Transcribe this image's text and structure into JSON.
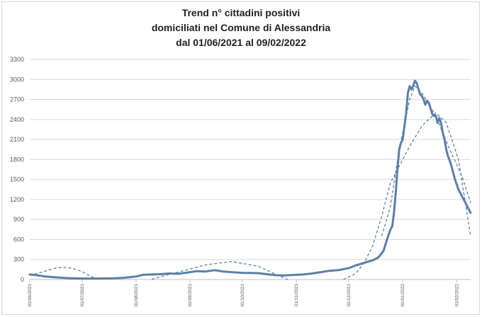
{
  "chart_data": {
    "type": "line",
    "title": [
      "Trend n° cittadini positivi",
      "domiciliati nel Comune di Alessandria",
      "dal 01/06/2021 al 09/02/2022"
    ],
    "xlabel": "",
    "ylabel": "",
    "x_ticks": [
      "01/06/2021",
      "01/07/2021",
      "01/08/2021",
      "01/09/2021",
      "01/10/2021",
      "01/11/2021",
      "01/12/2021",
      "01/01/2022",
      "01/02/2022"
    ],
    "y_ticks": [
      0,
      300,
      600,
      900,
      1200,
      1500,
      1800,
      2100,
      2400,
      2700,
      3000,
      3300
    ],
    "ylim": [
      0,
      3300
    ],
    "xlim": [
      "2021-06-01",
      "2022-02-09"
    ],
    "grid": true,
    "legend": "none",
    "colors": {
      "series": "#5b7fa8",
      "grid": "#d9d9d9",
      "axis": "#bfbfbf"
    },
    "series": [
      {
        "style": "solid",
        "points": [
          [
            "2021-06-01",
            75
          ],
          [
            "2021-06-05",
            65
          ],
          [
            "2021-06-10",
            45
          ],
          [
            "2021-06-15",
            35
          ],
          [
            "2021-06-20",
            25
          ],
          [
            "2021-06-25",
            18
          ],
          [
            "2021-07-01",
            15
          ],
          [
            "2021-07-10",
            15
          ],
          [
            "2021-07-20",
            18
          ],
          [
            "2021-07-25",
            25
          ],
          [
            "2021-08-01",
            45
          ],
          [
            "2021-08-05",
            70
          ],
          [
            "2021-08-10",
            75
          ],
          [
            "2021-08-15",
            80
          ],
          [
            "2021-08-20",
            90
          ],
          [
            "2021-08-25",
            85
          ],
          [
            "2021-09-01",
            110
          ],
          [
            "2021-09-05",
            125
          ],
          [
            "2021-09-10",
            120
          ],
          [
            "2021-09-15",
            140
          ],
          [
            "2021-09-20",
            120
          ],
          [
            "2021-09-25",
            110
          ],
          [
            "2021-10-01",
            100
          ],
          [
            "2021-10-10",
            95
          ],
          [
            "2021-10-15",
            80
          ],
          [
            "2021-10-20",
            65
          ],
          [
            "2021-10-25",
            60
          ],
          [
            "2021-11-01",
            70
          ],
          [
            "2021-11-05",
            75
          ],
          [
            "2021-11-10",
            90
          ],
          [
            "2021-11-15",
            110
          ],
          [
            "2021-11-20",
            130
          ],
          [
            "2021-11-25",
            140
          ],
          [
            "2021-12-01",
            170
          ],
          [
            "2021-12-05",
            210
          ],
          [
            "2021-12-10",
            250
          ],
          [
            "2021-12-15",
            290
          ],
          [
            "2021-12-18",
            330
          ],
          [
            "2021-12-21",
            430
          ],
          [
            "2021-12-23",
            600
          ],
          [
            "2021-12-25",
            750
          ],
          [
            "2021-12-26",
            800
          ],
          [
            "2021-12-27",
            1000
          ],
          [
            "2021-12-28",
            1300
          ],
          [
            "2021-12-29",
            1650
          ],
          [
            "2021-12-30",
            1950
          ],
          [
            "2021-12-31",
            2050
          ],
          [
            "2022-01-01",
            2100
          ],
          [
            "2022-01-02",
            2300
          ],
          [
            "2022-01-03",
            2500
          ],
          [
            "2022-01-04",
            2800
          ],
          [
            "2022-01-05",
            2900
          ],
          [
            "2022-01-06",
            2850
          ],
          [
            "2022-01-07",
            2900
          ],
          [
            "2022-01-08",
            2980
          ],
          [
            "2022-01-09",
            2950
          ],
          [
            "2022-01-10",
            2860
          ],
          [
            "2022-01-11",
            2780
          ],
          [
            "2022-01-12",
            2750
          ],
          [
            "2022-01-13",
            2700
          ],
          [
            "2022-01-14",
            2620
          ],
          [
            "2022-01-15",
            2680
          ],
          [
            "2022-01-16",
            2650
          ],
          [
            "2022-01-17",
            2560
          ],
          [
            "2022-01-18",
            2480
          ],
          [
            "2022-01-19",
            2450
          ],
          [
            "2022-01-20",
            2460
          ],
          [
            "2022-01-21",
            2350
          ],
          [
            "2022-01-22",
            2420
          ],
          [
            "2022-01-23",
            2350
          ],
          [
            "2022-01-24",
            2200
          ],
          [
            "2022-01-25",
            2100
          ],
          [
            "2022-01-26",
            1950
          ],
          [
            "2022-01-27",
            1850
          ],
          [
            "2022-01-28",
            1780
          ],
          [
            "2022-01-29",
            1700
          ],
          [
            "2022-01-30",
            1600
          ],
          [
            "2022-01-31",
            1500
          ],
          [
            "2022-02-02",
            1350
          ],
          [
            "2022-02-04",
            1250
          ],
          [
            "2022-02-06",
            1150
          ],
          [
            "2022-02-08",
            1050
          ],
          [
            "2022-02-09",
            1000
          ]
        ]
      },
      {
        "style": "dashed",
        "points": [
          [
            "2021-06-01",
            60
          ],
          [
            "2021-06-08",
            110
          ],
          [
            "2021-06-15",
            165
          ],
          [
            "2021-06-20",
            185
          ],
          [
            "2021-06-25",
            170
          ],
          [
            "2021-07-01",
            120
          ],
          [
            "2021-07-05",
            60
          ],
          [
            "2021-07-09",
            10
          ]
        ]
      },
      {
        "style": "dashed",
        "points": [
          [
            "2021-08-10",
            5
          ],
          [
            "2021-08-25",
            110
          ],
          [
            "2021-09-10",
            220
          ],
          [
            "2021-09-25",
            270
          ],
          [
            "2021-10-10",
            200
          ],
          [
            "2021-10-20",
            80
          ],
          [
            "2021-10-27",
            0
          ]
        ]
      },
      {
        "style": "dashed",
        "points": [
          [
            "2021-11-28",
            0
          ],
          [
            "2021-12-05",
            90
          ],
          [
            "2021-12-10",
            250
          ],
          [
            "2021-12-15",
            520
          ],
          [
            "2021-12-20",
            950
          ],
          [
            "2021-12-25",
            1450
          ],
          [
            "2021-12-30",
            1700
          ],
          [
            "2022-01-05",
            2000
          ],
          [
            "2022-01-12",
            2300
          ],
          [
            "2022-01-20",
            2500
          ],
          [
            "2022-01-26",
            2350
          ],
          [
            "2022-02-02",
            1800
          ],
          [
            "2022-02-09",
            650
          ]
        ]
      },
      {
        "style": "dashed",
        "points": [
          [
            "2021-12-20",
            650
          ],
          [
            "2021-12-25",
            1100
          ],
          [
            "2021-12-30",
            1950
          ],
          [
            "2022-01-05",
            2700
          ],
          [
            "2022-01-08",
            2900
          ],
          [
            "2022-01-12",
            2800
          ],
          [
            "2022-01-20",
            2450
          ],
          [
            "2022-01-28",
            1950
          ],
          [
            "2022-02-04",
            1550
          ],
          [
            "2022-02-09",
            1150
          ]
        ]
      }
    ]
  }
}
